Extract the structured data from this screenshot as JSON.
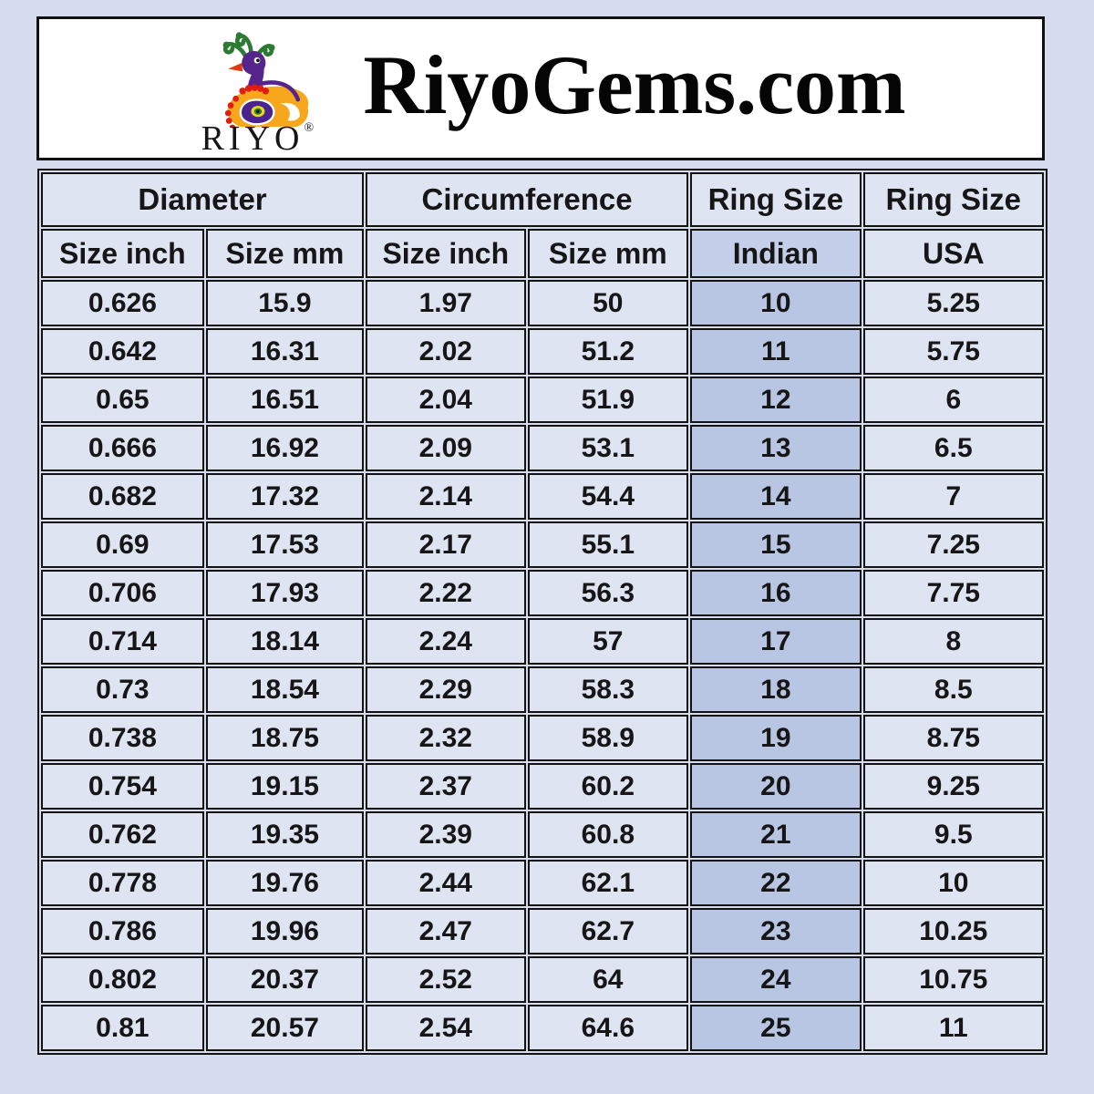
{
  "header": {
    "brand_site": "RiyoGems.com",
    "logo_text": "RIYO",
    "registered_mark": "®"
  },
  "chart_data": {
    "type": "table",
    "title": "RiyoGems.com ring size conversion chart",
    "group_headers": [
      {
        "label": "Diameter",
        "span": 2
      },
      {
        "label": "Circumference",
        "span": 2
      },
      {
        "label": "Ring Size",
        "span": 1
      },
      {
        "label": "Ring Size",
        "span": 1
      }
    ],
    "columns": [
      "Size inch",
      "Size mm",
      "Size inch",
      "Size mm",
      "Indian",
      "USA"
    ],
    "rows": [
      [
        "0.626",
        "15.9",
        "1.97",
        "50",
        "10",
        "5.25"
      ],
      [
        "0.642",
        "16.31",
        "2.02",
        "51.2",
        "11",
        "5.75"
      ],
      [
        "0.65",
        "16.51",
        "2.04",
        "51.9",
        "12",
        "6"
      ],
      [
        "0.666",
        "16.92",
        "2.09",
        "53.1",
        "13",
        "6.5"
      ],
      [
        "0.682",
        "17.32",
        "2.14",
        "54.4",
        "14",
        "7"
      ],
      [
        "0.69",
        "17.53",
        "2.17",
        "55.1",
        "15",
        "7.25"
      ],
      [
        "0.706",
        "17.93",
        "2.22",
        "56.3",
        "16",
        "7.75"
      ],
      [
        "0.714",
        "18.14",
        "2.24",
        "57",
        "17",
        "8"
      ],
      [
        "0.73",
        "18.54",
        "2.29",
        "58.3",
        "18",
        "8.5"
      ],
      [
        "0.738",
        "18.75",
        "2.32",
        "58.9",
        "19",
        "8.75"
      ],
      [
        "0.754",
        "19.15",
        "2.37",
        "60.2",
        "20",
        "9.25"
      ],
      [
        "0.762",
        "19.35",
        "2.39",
        "60.8",
        "21",
        "9.5"
      ],
      [
        "0.778",
        "19.76",
        "2.44",
        "62.1",
        "22",
        "10"
      ],
      [
        "0.786",
        "19.96",
        "2.47",
        "62.7",
        "23",
        "10.25"
      ],
      [
        "0.802",
        "20.37",
        "2.52",
        "64",
        "24",
        "10.75"
      ],
      [
        "0.81",
        "20.57",
        "2.54",
        "64.6",
        "25",
        "11"
      ]
    ],
    "highlighted_column": "Indian",
    "layout": {
      "grid": true,
      "legend": "none"
    }
  },
  "colors": {
    "page_background": "#d6dcee",
    "header_box_background": "#ffffff",
    "cell_background": "#dfe4f3",
    "indian_header_background": "#c4cfe9",
    "indian_column_background": "#b8c6e4",
    "border": "#131313",
    "text": "#161616",
    "logo_purple": "#56258c",
    "logo_orange": "#f6a71c",
    "logo_green": "#2c7a33",
    "logo_red": "#e01d10",
    "logo_yellow": "#e8d51f"
  }
}
